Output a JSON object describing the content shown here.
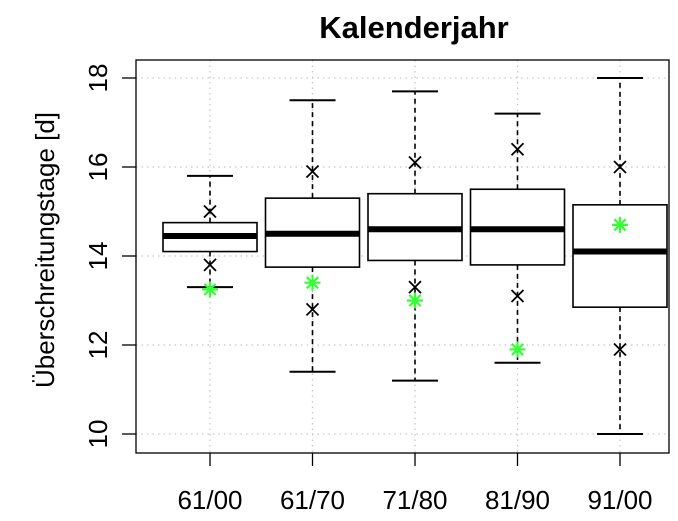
{
  "chart_data": {
    "type": "box",
    "title": "Kalenderjahr",
    "xlabel": "",
    "ylabel": "Überschreitungstage [d]",
    "ylim": [
      9.8,
      18.3
    ],
    "yticks": [
      10,
      12,
      14,
      16,
      18
    ],
    "ytick_labels": [
      "10",
      "12",
      "14",
      "16",
      "18"
    ],
    "grid": true,
    "categories": [
      "61/00",
      "61/70",
      "71/80",
      "81/90",
      "91/00"
    ],
    "boxes": [
      {
        "category": "61/00",
        "whisker_low": 13.3,
        "q1": 14.1,
        "median": 14.45,
        "q3": 14.75,
        "whisker_high": 15.8,
        "x_marks": [
          15.0,
          13.8
        ],
        "star": 13.25
      },
      {
        "category": "61/70",
        "whisker_low": 11.4,
        "q1": 13.75,
        "median": 14.5,
        "q3": 15.3,
        "whisker_high": 17.5,
        "x_marks": [
          15.9,
          12.8
        ],
        "star": 13.4
      },
      {
        "category": "71/80",
        "whisker_low": 11.2,
        "q1": 13.9,
        "median": 14.6,
        "q3": 15.4,
        "whisker_high": 17.7,
        "x_marks": [
          16.1,
          13.3
        ],
        "star": 13.0
      },
      {
        "category": "81/90",
        "whisker_low": 11.6,
        "q1": 13.8,
        "median": 14.6,
        "q3": 15.5,
        "whisker_high": 17.2,
        "x_marks": [
          16.4,
          13.1
        ],
        "star": 11.9
      },
      {
        "category": "91/00",
        "whisker_low": 10.0,
        "q1": 12.85,
        "median": 14.1,
        "q3": 15.15,
        "whisker_high": 18.0,
        "x_marks": [
          16.0,
          11.9
        ],
        "star": 14.7
      }
    ],
    "colors": {
      "box": "#000000",
      "star": "#33ff33",
      "grid": "#c8c8c8"
    }
  }
}
